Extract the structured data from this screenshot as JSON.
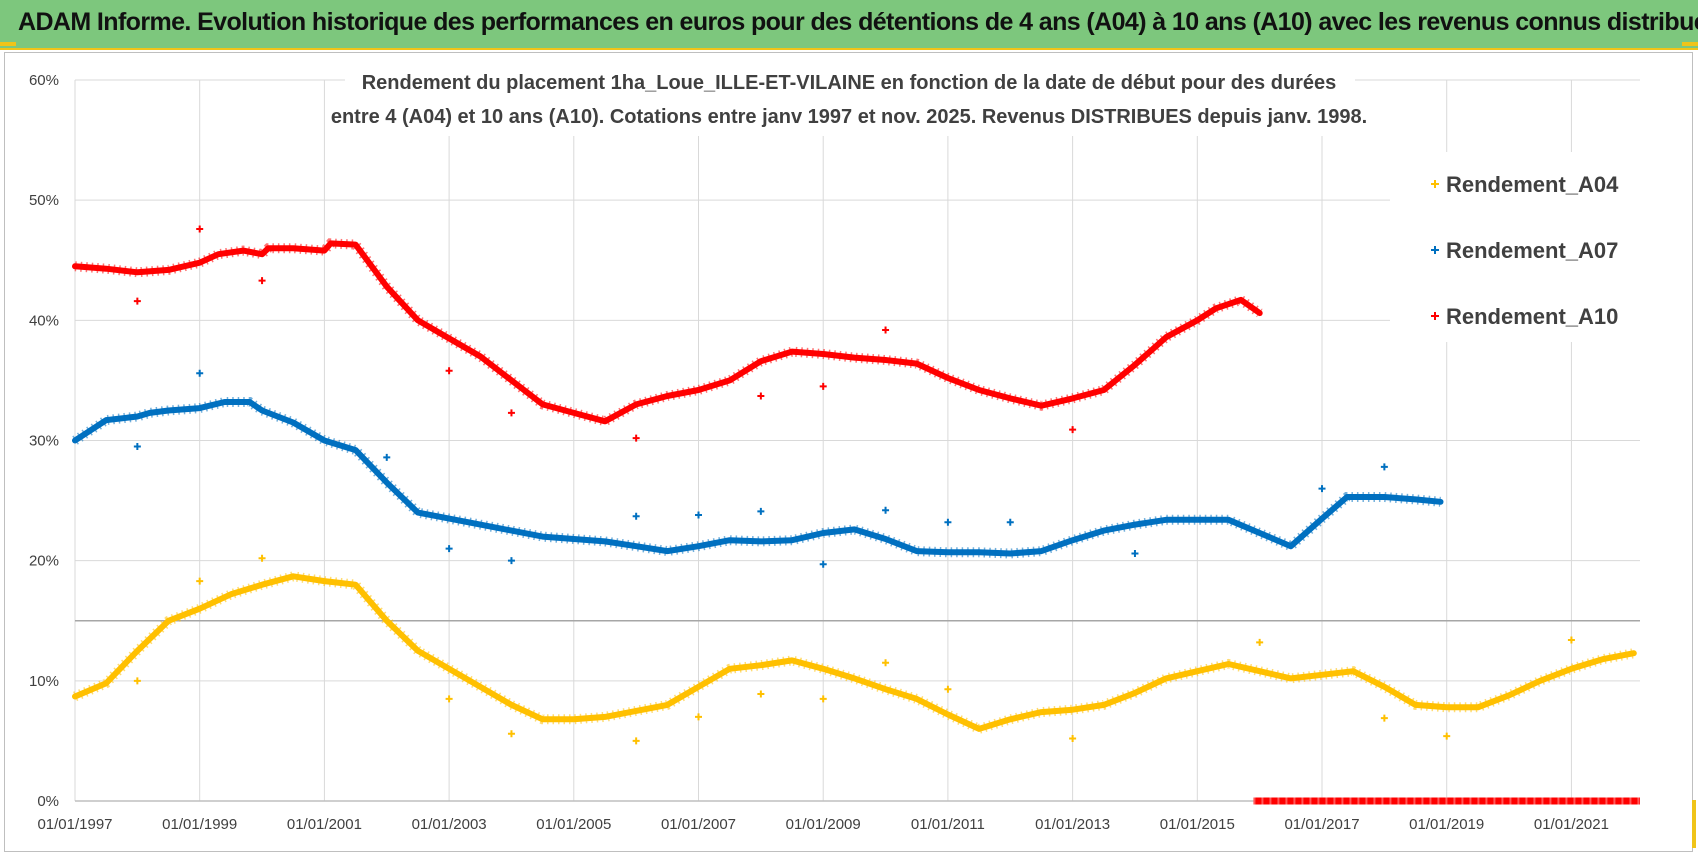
{
  "header": {
    "title": "ADAM Informe. Evolution historique des performances en euros pour des détentions de 4 ans (A04) à 10 ans (A10) avec les revenus connus distribués"
  },
  "colors": {
    "A04": "#ffc000",
    "A07": "#0070c0",
    "A10": "#ff0000",
    "grid": "#d9d9d9",
    "header_bg": "#7dc77d"
  },
  "chart_data": {
    "type": "scatter",
    "title_lines": [
      "Rendement du placement 1ha_Loue_ILLE-ET-VILAINE  en fonction de la date de début pour des durées",
      "entre 4 (A04) et 10 ans (A10).  Cotations entre janv 1997 et nov. 2025. Revenus DISTRIBUES depuis janv. 1998."
    ],
    "x_range": [
      1997.0,
      2022.1
    ],
    "x_tick_values": [
      1997,
      1999,
      2001,
      2003,
      2005,
      2007,
      2009,
      2011,
      2013,
      2015,
      2017,
      2019,
      2021
    ],
    "x_tick_labels": [
      "01/01/1997",
      "01/01/1999",
      "01/01/2001",
      "01/01/2003",
      "01/01/2005",
      "01/01/2007",
      "01/01/2009",
      "01/01/2011",
      "01/01/2013",
      "01/01/2015",
      "01/01/2017",
      "01/01/2019",
      "01/01/2021"
    ],
    "y_range": [
      0,
      60
    ],
    "y_tick_values": [
      0,
      10,
      20,
      30,
      40,
      50,
      60
    ],
    "y_tick_labels": [
      "0%",
      "10%",
      "20%",
      "30%",
      "40%",
      "50%",
      "60%"
    ],
    "reference_line": 15,
    "legend_position": "top-right",
    "series": [
      {
        "name": "Rendement_A04",
        "key": "A04",
        "points": [
          [
            1997.0,
            8.7
          ],
          [
            1997.5,
            9.8
          ],
          [
            1998.0,
            12.5
          ],
          [
            1998.5,
            15.0
          ],
          [
            1999.0,
            16.0
          ],
          [
            1999.5,
            17.2
          ],
          [
            2000.0,
            18.0
          ],
          [
            2000.5,
            18.7
          ],
          [
            2001.0,
            18.3
          ],
          [
            2001.5,
            18.0
          ],
          [
            2002.0,
            15.0
          ],
          [
            2002.5,
            12.5
          ],
          [
            2003.0,
            11.0
          ],
          [
            2003.5,
            9.5
          ],
          [
            2004.0,
            8.0
          ],
          [
            2004.5,
            6.8
          ],
          [
            2005.0,
            6.8
          ],
          [
            2005.5,
            7.0
          ],
          [
            2006.0,
            7.5
          ],
          [
            2006.5,
            8.0
          ],
          [
            2007.0,
            9.5
          ],
          [
            2007.5,
            11.0
          ],
          [
            2008.0,
            11.3
          ],
          [
            2008.5,
            11.7
          ],
          [
            2009.0,
            11.0
          ],
          [
            2009.5,
            10.2
          ],
          [
            2010.0,
            9.3
          ],
          [
            2010.5,
            8.5
          ],
          [
            2011.0,
            7.2
          ],
          [
            2011.5,
            6.0
          ],
          [
            2012.0,
            6.8
          ],
          [
            2012.5,
            7.4
          ],
          [
            2013.0,
            7.6
          ],
          [
            2013.5,
            8.0
          ],
          [
            2014.0,
            9.0
          ],
          [
            2014.5,
            10.2
          ],
          [
            2015.0,
            10.8
          ],
          [
            2015.5,
            11.4
          ],
          [
            2016.0,
            10.8
          ],
          [
            2016.5,
            10.2
          ],
          [
            2017.0,
            10.5
          ],
          [
            2017.5,
            10.8
          ],
          [
            2018.0,
            9.5
          ],
          [
            2018.5,
            8.0
          ],
          [
            2019.0,
            7.8
          ],
          [
            2019.5,
            7.8
          ],
          [
            2020.0,
            8.8
          ],
          [
            2020.5,
            10.0
          ],
          [
            2021.0,
            11.0
          ],
          [
            2021.5,
            11.8
          ],
          [
            2022.0,
            12.3
          ]
        ],
        "outliers": [
          [
            1998.0,
            10.0
          ],
          [
            1999.0,
            18.3
          ],
          [
            2000.0,
            20.2
          ],
          [
            2003.0,
            8.5
          ],
          [
            2004.0,
            5.6
          ],
          [
            2006.0,
            5.0
          ],
          [
            2007.0,
            7.0
          ],
          [
            2008.0,
            8.9
          ],
          [
            2009.0,
            8.5
          ],
          [
            2010.0,
            11.5
          ],
          [
            2011.0,
            9.3
          ],
          [
            2013.0,
            5.2
          ],
          [
            2016.0,
            13.2
          ],
          [
            2018.0,
            6.9
          ],
          [
            2019.0,
            5.4
          ],
          [
            2021.0,
            13.4
          ]
        ]
      },
      {
        "name": "Rendement_A07",
        "key": "A07",
        "points": [
          [
            1997.0,
            30.0
          ],
          [
            1997.5,
            31.7
          ],
          [
            1998.0,
            32.0
          ],
          [
            1998.2,
            32.3
          ],
          [
            1998.5,
            32.5
          ],
          [
            1999.0,
            32.7
          ],
          [
            1999.4,
            33.2
          ],
          [
            1999.8,
            33.2
          ],
          [
            2000.0,
            32.5
          ],
          [
            2000.5,
            31.5
          ],
          [
            2001.0,
            30.0
          ],
          [
            2001.5,
            29.2
          ],
          [
            2002.0,
            26.5
          ],
          [
            2002.5,
            24.0
          ],
          [
            2003.0,
            23.5
          ],
          [
            2003.5,
            23.0
          ],
          [
            2004.0,
            22.5
          ],
          [
            2004.5,
            22.0
          ],
          [
            2005.0,
            21.8
          ],
          [
            2005.5,
            21.6
          ],
          [
            2006.0,
            21.2
          ],
          [
            2006.5,
            20.8
          ],
          [
            2007.0,
            21.2
          ],
          [
            2007.5,
            21.7
          ],
          [
            2008.0,
            21.6
          ],
          [
            2008.5,
            21.7
          ],
          [
            2009.0,
            22.3
          ],
          [
            2009.5,
            22.6
          ],
          [
            2010.0,
            21.8
          ],
          [
            2010.5,
            20.8
          ],
          [
            2011.0,
            20.7
          ],
          [
            2011.5,
            20.7
          ],
          [
            2012.0,
            20.6
          ],
          [
            2012.5,
            20.8
          ],
          [
            2013.0,
            21.7
          ],
          [
            2013.5,
            22.5
          ],
          [
            2014.0,
            23.0
          ],
          [
            2014.5,
            23.4
          ],
          [
            2015.0,
            23.4
          ],
          [
            2015.5,
            23.4
          ],
          [
            2016.0,
            22.3
          ],
          [
            2016.5,
            21.2
          ],
          [
            2017.0,
            23.5
          ],
          [
            2017.4,
            25.3
          ],
          [
            2017.8,
            25.3
          ],
          [
            2018.0,
            25.3
          ],
          [
            2018.5,
            25.1
          ],
          [
            2018.9,
            24.9
          ]
        ],
        "outliers": [
          [
            1998.0,
            29.5
          ],
          [
            1999.0,
            35.6
          ],
          [
            2002.0,
            28.6
          ],
          [
            2003.0,
            21.0
          ],
          [
            2004.0,
            20.0
          ],
          [
            2006.0,
            23.7
          ],
          [
            2007.0,
            23.8
          ],
          [
            2008.0,
            24.1
          ],
          [
            2009.0,
            19.7
          ],
          [
            2010.0,
            24.2
          ],
          [
            2011.0,
            23.2
          ],
          [
            2012.0,
            23.2
          ],
          [
            2014.0,
            20.6
          ],
          [
            2017.0,
            26.0
          ],
          [
            2018.0,
            27.8
          ]
        ]
      },
      {
        "name": "Rendement_A10",
        "key": "A10",
        "points": [
          [
            1997.0,
            44.5
          ],
          [
            1997.5,
            44.3
          ],
          [
            1998.0,
            44.0
          ],
          [
            1998.5,
            44.2
          ],
          [
            1999.0,
            44.8
          ],
          [
            1999.3,
            45.5
          ],
          [
            1999.7,
            45.8
          ],
          [
            2000.0,
            45.5
          ],
          [
            2000.1,
            46.0
          ],
          [
            2000.5,
            46.0
          ],
          [
            2001.0,
            45.8
          ],
          [
            2001.1,
            46.4
          ],
          [
            2001.5,
            46.3
          ],
          [
            2002.0,
            42.8
          ],
          [
            2002.5,
            40.0
          ],
          [
            2003.0,
            38.5
          ],
          [
            2003.5,
            37.0
          ],
          [
            2004.0,
            35.0
          ],
          [
            2004.5,
            33.0
          ],
          [
            2005.0,
            32.3
          ],
          [
            2005.5,
            31.6
          ],
          [
            2006.0,
            33.0
          ],
          [
            2006.5,
            33.7
          ],
          [
            2007.0,
            34.2
          ],
          [
            2007.5,
            35.0
          ],
          [
            2008.0,
            36.6
          ],
          [
            2008.5,
            37.4
          ],
          [
            2009.0,
            37.2
          ],
          [
            2009.5,
            36.9
          ],
          [
            2010.0,
            36.7
          ],
          [
            2010.5,
            36.4
          ],
          [
            2011.0,
            35.2
          ],
          [
            2011.5,
            34.2
          ],
          [
            2012.0,
            33.5
          ],
          [
            2012.5,
            32.9
          ],
          [
            2013.0,
            33.5
          ],
          [
            2013.5,
            34.2
          ],
          [
            2014.0,
            36.3
          ],
          [
            2014.5,
            38.6
          ],
          [
            2015.0,
            40.0
          ],
          [
            2015.3,
            41.0
          ],
          [
            2015.7,
            41.7
          ],
          [
            2016.0,
            40.6
          ]
        ],
        "outliers": [
          [
            1998.0,
            41.6
          ],
          [
            1999.0,
            47.6
          ],
          [
            2000.0,
            43.3
          ],
          [
            2003.0,
            35.8
          ],
          [
            2004.0,
            32.3
          ],
          [
            2006.0,
            30.2
          ],
          [
            2008.0,
            33.7
          ],
          [
            2009.0,
            34.5
          ],
          [
            2010.0,
            39.2
          ],
          [
            2013.0,
            30.9
          ]
        ],
        "zero_segment": [
          2015.9,
          2022.1
        ]
      }
    ]
  }
}
